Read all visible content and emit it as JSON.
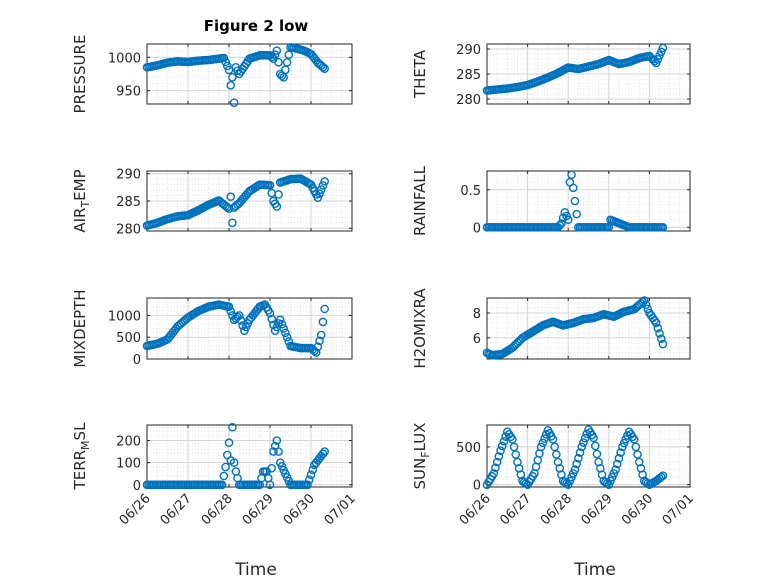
{
  "figure_title": "Figure 2 low",
  "chart_data": [
    {
      "type": "scatter",
      "ylabel": "PRESSURE",
      "title": "Figure 2 low",
      "xlim": [
        "06/26",
        "07/01"
      ],
      "ylim": [
        930,
        1020
      ],
      "yticks": [
        "950",
        "1000"
      ],
      "grid": true,
      "x": [
        "06/26 00:00",
        "06/26 06:00",
        "06/26 12:00",
        "06/26 18:00",
        "06/27 00:00",
        "06/27 06:00",
        "06/27 12:00",
        "06/27 18:00",
        "06/27 21:00",
        "06/28 00:00",
        "06/28 01:00",
        "06/28 02:00",
        "06/28 03:00",
        "06/28 04:00",
        "06/28 06:00",
        "06/28 12:00",
        "06/28 18:00",
        "06/29 00:00",
        "06/29 02:00",
        "06/29 04:00",
        "06/29 06:00",
        "06/29 08:00",
        "06/29 12:00",
        "06/29 16:00",
        "06/29 20:00",
        "06/30 00:00",
        "06/30 04:00",
        "06/30 08:00"
      ],
      "y": [
        985,
        988,
        992,
        994,
        993,
        995,
        996,
        998,
        999,
        981,
        958,
        970,
        932,
        985,
        975,
        998,
        1003,
        1003,
        998,
        1010,
        975,
        970,
        1015,
        1013,
        1010,
        1005,
        992,
        983
      ]
    },
    {
      "type": "scatter",
      "ylabel": "THETA",
      "xlim": [
        "06/26",
        "07/01"
      ],
      "ylim": [
        279,
        291
      ],
      "yticks": [
        "280",
        "285",
        "290"
      ],
      "grid": true,
      "x": [
        "06/26 00:00",
        "06/26 06:00",
        "06/26 12:00",
        "06/26 18:00",
        "06/27 00:00",
        "06/27 06:00",
        "06/27 12:00",
        "06/27 18:00",
        "06/28 00:00",
        "06/28 06:00",
        "06/28 12:00",
        "06/28 18:00",
        "06/29 00:00",
        "06/29 06:00",
        "06/29 12:00",
        "06/29 18:00",
        "06/30 00:00",
        "06/30 04:00",
        "06/30 08:00"
      ],
      "y": [
        281.7,
        281.9,
        282.1,
        282.4,
        282.8,
        283.5,
        284.3,
        285.2,
        286.3,
        286.0,
        286.5,
        287.0,
        287.8,
        287.0,
        287.4,
        288.2,
        288.6,
        287.2,
        290.2
      ]
    },
    {
      "type": "scatter",
      "ylabel": "AIR_TEMP",
      "xlim": [
        "06/26",
        "07/01"
      ],
      "ylim": [
        279.5,
        290.5
      ],
      "yticks": [
        "280",
        "285",
        "290"
      ],
      "grid": true,
      "x": [
        "06/26 00:00",
        "06/26 06:00",
        "06/26 12:00",
        "06/26 18:00",
        "06/27 00:00",
        "06/27 06:00",
        "06/27 12:00",
        "06/27 18:00",
        "06/28 00:00",
        "06/28 01:00",
        "06/28 02:00",
        "06/28 03:00",
        "06/28 06:00",
        "06/28 12:00",
        "06/28 18:00",
        "06/29 00:00",
        "06/29 02:00",
        "06/29 04:00",
        "06/29 06:00",
        "06/29 12:00",
        "06/29 18:00",
        "06/30 00:00",
        "06/30 04:00",
        "06/30 08:00"
      ],
      "y": [
        280.5,
        281.0,
        281.7,
        282.2,
        282.4,
        283.3,
        284.3,
        285.1,
        283.6,
        285.8,
        281.0,
        283.8,
        284.6,
        286.8,
        288.0,
        287.9,
        285.0,
        284.0,
        288.4,
        289.0,
        289.1,
        288.0,
        285.6,
        288.6
      ]
    },
    {
      "type": "scatter",
      "ylabel": "RAINFALL",
      "xlim": [
        "06/26",
        "07/01"
      ],
      "ylim": [
        -0.05,
        0.75
      ],
      "yticks": [
        "0",
        "0.5"
      ],
      "grid": true,
      "x": [
        "06/26 00:00",
        "06/26 12:00",
        "06/27 00:00",
        "06/27 12:00",
        "06/27 18:00",
        "06/27 20:00",
        "06/27 22:00",
        "06/28 00:00",
        "06/28 01:00",
        "06/28 02:00",
        "06/28 06:00",
        "06/28 12:00",
        "06/29 00:00",
        "06/29 01:00",
        "06/29 12:00",
        "06/30 00:00",
        "06/30 08:00"
      ],
      "y": [
        0,
        0,
        0,
        0,
        0,
        0.05,
        0.2,
        0.1,
        0.6,
        0.7,
        0,
        0,
        0,
        0.1,
        0,
        0,
        0
      ]
    },
    {
      "type": "scatter",
      "ylabel": "MIXDEPTH",
      "xlim": [
        "06/26",
        "07/01"
      ],
      "ylim": [
        0,
        1400
      ],
      "yticks": [
        "0",
        "500",
        "1000"
      ],
      "grid": true,
      "x": [
        "06/26 00:00",
        "06/26 06:00",
        "06/26 12:00",
        "06/26 18:00",
        "06/27 00:00",
        "06/27 06:00",
        "06/27 12:00",
        "06/27 18:00",
        "06/28 00:00",
        "06/28 03:00",
        "06/28 06:00",
        "06/28 09:00",
        "06/28 12:00",
        "06/28 18:00",
        "06/28 21:00",
        "06/29 00:00",
        "06/29 03:00",
        "06/29 06:00",
        "06/29 12:00",
        "06/29 18:00",
        "06/30 00:00",
        "06/30 03:00",
        "06/30 06:00",
        "06/30 08:00"
      ],
      "y": [
        300,
        350,
        450,
        750,
        950,
        1100,
        1200,
        1250,
        1200,
        900,
        1000,
        650,
        900,
        1200,
        1250,
        1050,
        650,
        900,
        300,
        250,
        250,
        150,
        550,
        1150
      ]
    },
    {
      "type": "scatter",
      "ylabel": "H2OMIXRA",
      "xlim": [
        "06/26",
        "07/01"
      ],
      "ylim": [
        4.3,
        9.2
      ],
      "yticks": [
        "6",
        "8"
      ],
      "grid": true,
      "x": [
        "06/26 00:00",
        "06/26 03:00",
        "06/26 09:00",
        "06/26 15:00",
        "06/26 21:00",
        "06/27 03:00",
        "06/27 09:00",
        "06/27 15:00",
        "06/27 21:00",
        "06/28 03:00",
        "06/28 09:00",
        "06/28 15:00",
        "06/28 21:00",
        "06/29 03:00",
        "06/29 09:00",
        "06/29 15:00",
        "06/29 21:00",
        "06/30 00:00",
        "06/30 04:00",
        "06/30 08:00"
      ],
      "y": [
        4.8,
        4.6,
        4.7,
        5.2,
        6.0,
        6.5,
        7.0,
        7.3,
        7.0,
        7.2,
        7.5,
        7.6,
        7.9,
        7.7,
        8.1,
        8.3,
        9.0,
        8.0,
        7.2,
        5.5
      ]
    },
    {
      "type": "scatter",
      "ylabel": "TERR_MSL",
      "xlim": [
        "06/26",
        "07/01"
      ],
      "ylim": [
        -10,
        270
      ],
      "yticks": [
        "0",
        "100",
        "200"
      ],
      "grid": true,
      "x": [
        "06/26 00:00",
        "06/26 12:00",
        "06/27 00:00",
        "06/27 12:00",
        "06/27 20:00",
        "06/27 22:00",
        "06/28 00:00",
        "06/28 01:00",
        "06/28 02:00",
        "06/28 03:00",
        "06/28 04:00",
        "06/28 06:00",
        "06/28 12:00",
        "06/28 18:00",
        "06/28 20:00",
        "06/28 22:00",
        "06/29 00:00",
        "06/29 02:00",
        "06/29 04:00",
        "06/29 06:00",
        "06/29 12:00",
        "06/29 18:00",
        "06/29 22:00",
        "06/30 02:00",
        "06/30 06:00",
        "06/30 08:00"
      ],
      "y": [
        0,
        0,
        0,
        0,
        0,
        80,
        190,
        110,
        260,
        100,
        60,
        0,
        0,
        0,
        60,
        60,
        0,
        150,
        200,
        100,
        0,
        0,
        0,
        90,
        130,
        150
      ]
    },
    {
      "type": "scatter",
      "ylabel": "SUN_FLUX",
      "xlim": [
        "06/26",
        "07/01"
      ],
      "ylim": [
        -30,
        790
      ],
      "yticks": [
        "0",
        "500"
      ],
      "grid": true,
      "x": [
        "06/26 00:00",
        "06/26 04:00",
        "06/26 08:00",
        "06/26 12:00",
        "06/26 15:00",
        "06/26 18:00",
        "06/26 21:00",
        "06/27 00:00",
        "06/27 04:00",
        "06/27 08:00",
        "06/27 12:00",
        "06/27 15:00",
        "06/27 18:00",
        "06/27 21:00",
        "06/28 00:00",
        "06/28 04:00",
        "06/28 08:00",
        "06/28 12:00",
        "06/28 15:00",
        "06/28 18:00",
        "06/28 21:00",
        "06/29 00:00",
        "06/29 04:00",
        "06/29 08:00",
        "06/29 12:00",
        "06/29 15:00",
        "06/29 18:00",
        "06/29 21:00",
        "06/30 00:00",
        "06/30 04:00",
        "06/30 08:00"
      ],
      "y": [
        0,
        150,
        450,
        700,
        600,
        300,
        50,
        0,
        150,
        500,
        720,
        600,
        300,
        50,
        0,
        200,
        500,
        730,
        620,
        300,
        50,
        0,
        200,
        500,
        700,
        600,
        300,
        50,
        0,
        50,
        120
      ]
    }
  ],
  "xticks": [
    "06/26",
    "06/27",
    "06/28",
    "06/29",
    "06/30",
    "07/01"
  ],
  "xlabel": "Time",
  "colors": {
    "marker": "#0072BD",
    "grid": "#dfdfdf",
    "axis": "#262626"
  }
}
